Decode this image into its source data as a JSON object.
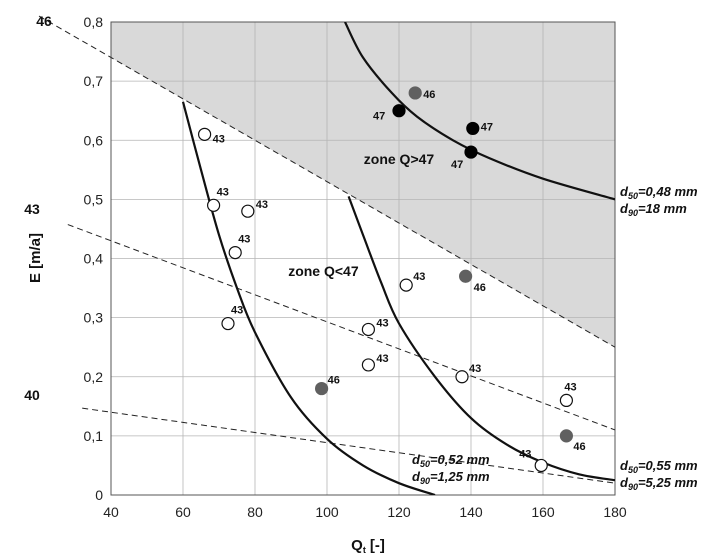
{
  "chart_data": {
    "type": "scatter",
    "title": "",
    "xlabel": "Q",
    "xlabel_sub": "t",
    "xlabel_unit": "[-]",
    "ylabel": "E [m/a]",
    "xlim": [
      40,
      180
    ],
    "ylim": [
      0,
      0.8
    ],
    "x_ticks": [
      40,
      60,
      80,
      100,
      120,
      140,
      160,
      180
    ],
    "x_tick_labels": [
      "40",
      "60",
      "80",
      "100",
      "120",
      "140",
      "160",
      "180"
    ],
    "y_ticks": [
      0,
      0.1,
      0.2,
      0.3,
      0.4,
      0.5,
      0.6,
      0.7,
      0.8
    ],
    "y_tick_labels": [
      "0",
      "0,1",
      "0,2",
      "0,3",
      "0,4",
      "0,5",
      "0,6",
      "0,7",
      "0,8"
    ],
    "grid": true,
    "colors": {
      "shade": "#d9d9d9",
      "grey_point": "#606060",
      "black_point": "#000000",
      "grid": "#b5b5b5"
    },
    "zones": [
      {
        "label": "zone Q>47",
        "x": 120,
        "y": 0.56
      },
      {
        "label": "zone Q<47",
        "x": 99,
        "y": 0.37
      }
    ],
    "dashed_lines": [
      {
        "label": "46",
        "x1": 40,
        "y1": 0.74,
        "x2": 180,
        "y2": 0.25
      },
      {
        "label": "43",
        "x1": 40,
        "y1": 0.43,
        "x2": 180,
        "y2": 0.11
      },
      {
        "label": "40",
        "x1": 40,
        "y1": 0.14,
        "x2": 180,
        "y2": 0.02
      }
    ],
    "curves": [
      {
        "points": [
          [
            105,
            0.8
          ],
          [
            110,
            0.74
          ],
          [
            118,
            0.68
          ],
          [
            125,
            0.64
          ],
          [
            135,
            0.6
          ],
          [
            145,
            0.57
          ],
          [
            160,
            0.535
          ],
          [
            180,
            0.5
          ]
        ],
        "label_lines": [
          {
            "d": "d",
            "sub": "50",
            "text": "=0,48 mm"
          },
          {
            "d": "d",
            "sub": "90",
            "text": "=18 mm"
          }
        ]
      },
      {
        "points": [
          [
            60,
            0.665
          ],
          [
            65,
            0.55
          ],
          [
            70,
            0.44
          ],
          [
            75,
            0.35
          ],
          [
            80,
            0.275
          ],
          [
            90,
            0.165
          ],
          [
            100,
            0.095
          ],
          [
            110,
            0.05
          ],
          [
            120,
            0.02
          ],
          [
            130,
            0.0
          ]
        ],
        "label_lines": [
          {
            "d": "d",
            "sub": "50",
            "text": "=0,52 mm"
          },
          {
            "d": "d",
            "sub": "90",
            "text": "=1,25 mm"
          }
        ]
      },
      {
        "points": [
          [
            106,
            0.505
          ],
          [
            110,
            0.44
          ],
          [
            115,
            0.36
          ],
          [
            120,
            0.29
          ],
          [
            130,
            0.2
          ],
          [
            140,
            0.13
          ],
          [
            150,
            0.085
          ],
          [
            160,
            0.055
          ],
          [
            170,
            0.035
          ],
          [
            180,
            0.025
          ]
        ],
        "label_lines": [
          {
            "d": "d",
            "sub": "50",
            "text": "=0,55 mm"
          },
          {
            "d": "d",
            "sub": "90",
            "text": "=5,25 mm"
          }
        ]
      }
    ],
    "points": [
      {
        "x": 66,
        "y": 0.61,
        "style": "open",
        "label": "43"
      },
      {
        "x": 68.5,
        "y": 0.49,
        "style": "open",
        "label": "43"
      },
      {
        "x": 78,
        "y": 0.48,
        "style": "open",
        "label": "43"
      },
      {
        "x": 74.5,
        "y": 0.41,
        "style": "open",
        "label": "43"
      },
      {
        "x": 72.5,
        "y": 0.29,
        "style": "open",
        "label": "43"
      },
      {
        "x": 111.5,
        "y": 0.28,
        "style": "open",
        "label": "43"
      },
      {
        "x": 111.5,
        "y": 0.22,
        "style": "open",
        "label": "43"
      },
      {
        "x": 122,
        "y": 0.355,
        "style": "open",
        "label": "43"
      },
      {
        "x": 137.5,
        "y": 0.2,
        "style": "open",
        "label": "43"
      },
      {
        "x": 166.5,
        "y": 0.16,
        "style": "open",
        "label": "43"
      },
      {
        "x": 159.5,
        "y": 0.05,
        "style": "open",
        "label": "43"
      },
      {
        "x": 98.5,
        "y": 0.18,
        "style": "grey",
        "label": "46"
      },
      {
        "x": 124.5,
        "y": 0.68,
        "style": "grey",
        "label": "46"
      },
      {
        "x": 138.5,
        "y": 0.37,
        "style": "grey",
        "label": "46"
      },
      {
        "x": 166.5,
        "y": 0.1,
        "style": "grey",
        "label": "46"
      },
      {
        "x": 120,
        "y": 0.65,
        "style": "black",
        "label": "47"
      },
      {
        "x": 140.5,
        "y": 0.62,
        "style": "black",
        "label": "47"
      },
      {
        "x": 140,
        "y": 0.58,
        "style": "black",
        "label": "47"
      }
    ]
  }
}
